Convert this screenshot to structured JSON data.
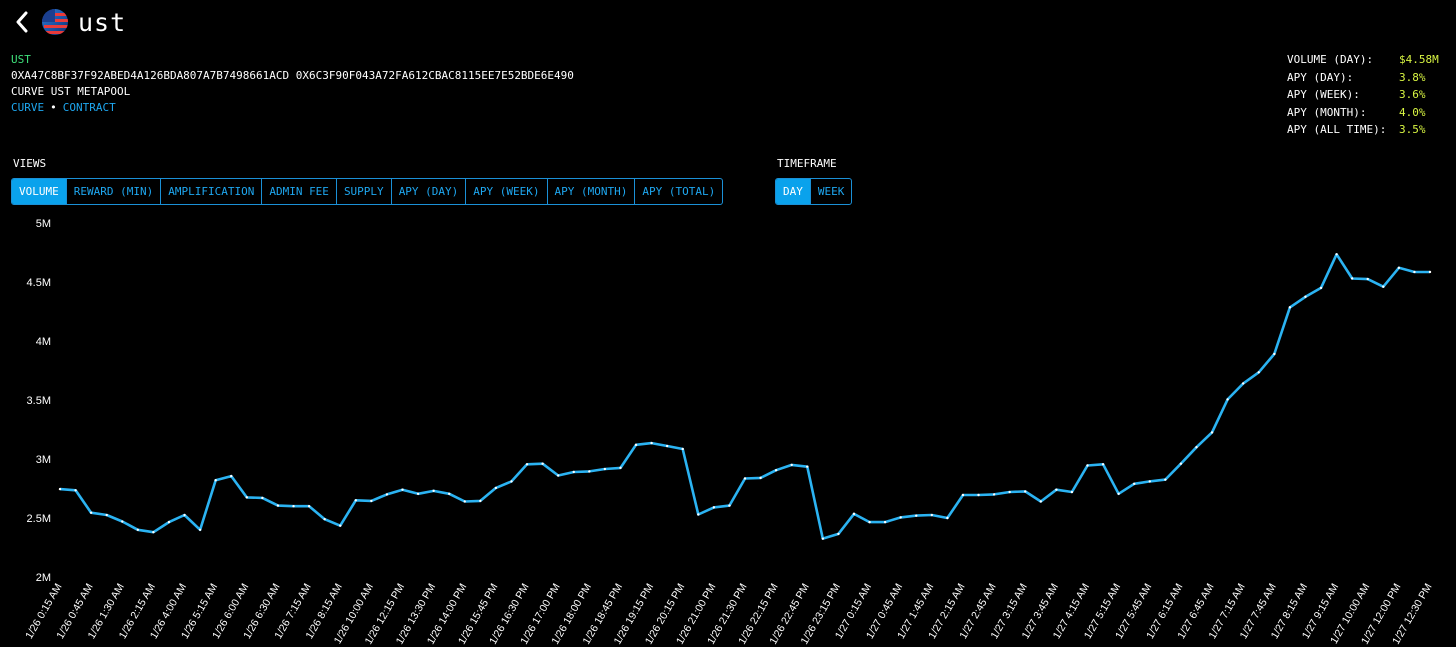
{
  "header": {
    "title": "ust",
    "back_icon": "chevron-left-icon",
    "logo_icon": "us-flag-globe-icon"
  },
  "pool": {
    "symbol": "UST",
    "addresses": "0XA47C8BF37F92ABED4A126BDA807A7B7498661ACD 0X6C3F90F043A72FA612CBAC8115EE7E52BDE6E490",
    "name": "CURVE UST METAPOOL",
    "links": [
      "CURVE",
      "CONTRACT"
    ],
    "separator": "•"
  },
  "stats": [
    {
      "label": "VOLUME (DAY):",
      "value": "$4.58M"
    },
    {
      "label": "APY (DAY):",
      "value": "3.8%"
    },
    {
      "label": "APY (WEEK):",
      "value": "3.6%"
    },
    {
      "label": "APY (MONTH):",
      "value": "4.0%"
    },
    {
      "label": "APY (ALL TIME):",
      "value": "3.5%"
    }
  ],
  "views": {
    "label": "VIEWS",
    "options": [
      "VOLUME",
      "REWARD (MIN)",
      "AMPLIFICATION",
      "ADMIN FEE",
      "SUPPLY",
      "APY (DAY)",
      "APY (WEEK)",
      "APY (MONTH)",
      "APY (TOTAL)"
    ],
    "selected": "VOLUME"
  },
  "timeframe": {
    "label": "TIMEFRAME",
    "options": [
      "DAY",
      "WEEK"
    ],
    "selected": "DAY"
  },
  "colors": {
    "accent": "#0aa2ec",
    "line": "#2bb3f2",
    "symbol": "#3ee07a",
    "stat_value": "#d8f542",
    "background": "#000000"
  },
  "chart_data": {
    "type": "line",
    "y_ticks": [
      "5M",
      "4.5M",
      "4M",
      "3.5M",
      "3M",
      "2.5M",
      "2M"
    ],
    "ylim": [
      2000000,
      5000000
    ],
    "x_tick_labels": [
      "1/26 0:15 AM",
      "1/26 0:45 AM",
      "1/26 1:30 AM",
      "1/26 2:15 AM",
      "1/26 4:00 AM",
      "1/26 5:15 AM",
      "1/26 6:00 AM",
      "1/26 6:30 AM",
      "1/26 7:15 AM",
      "1/26 8:15 AM",
      "1/26 10:00 AM",
      "1/26 12:15 PM",
      "1/26 13:30 PM",
      "1/26 14:00 PM",
      "1/26 15:45 PM",
      "1/26 16:30 PM",
      "1/26 17:00 PM",
      "1/26 18:00 PM",
      "1/26 18:45 PM",
      "1/26 19:15 PM",
      "1/26 20:15 PM",
      "1/26 21:00 PM",
      "1/26 21:30 PM",
      "1/26 22:15 PM",
      "1/26 22:45 PM",
      "1/26 23:15 PM",
      "1/27 0:15 AM",
      "1/27 0:45 AM",
      "1/27 1:45 AM",
      "1/27 2:15 AM",
      "1/27 2:45 AM",
      "1/27 3:15 AM",
      "1/27 3:45 AM",
      "1/27 4:15 AM",
      "1/27 5:15 AM",
      "1/27 5:45 AM",
      "1/27 6:15 AM",
      "1/27 6:45 AM",
      "1/27 7:15 AM",
      "1/27 7:45 AM",
      "1/27 8:15 AM",
      "1/27 9:15 AM",
      "1/27 10:00 AM",
      "1/27 12:00 PM",
      "1/27 12:30 PM"
    ],
    "values": [
      2745000,
      2735000,
      2545000,
      2525000,
      2470000,
      2400000,
      2380000,
      2465000,
      2525000,
      2400000,
      2820000,
      2855000,
      2675000,
      2670000,
      2605000,
      2600000,
      2600000,
      2490000,
      2435000,
      2650000,
      2645000,
      2700000,
      2740000,
      2705000,
      2730000,
      2705000,
      2640000,
      2645000,
      2755000,
      2810000,
      2955000,
      2960000,
      2860000,
      2890000,
      2895000,
      2915000,
      2925000,
      3120000,
      3135000,
      3110000,
      3085000,
      2530000,
      2590000,
      2605000,
      2835000,
      2840000,
      2905000,
      2950000,
      2935000,
      2325000,
      2365000,
      2535000,
      2465000,
      2465000,
      2505000,
      2520000,
      2525000,
      2500000,
      2695000,
      2695000,
      2700000,
      2720000,
      2725000,
      2640000,
      2740000,
      2720000,
      2945000,
      2955000,
      2705000,
      2790000,
      2810000,
      2825000,
      2960000,
      3100000,
      3225000,
      3505000,
      3640000,
      3735000,
      3890000,
      4285000,
      4375000,
      4450000,
      4735000,
      4530000,
      4525000,
      4460000,
      4620000,
      4585000,
      4585000
    ],
    "grid": false,
    "legend": "none"
  }
}
